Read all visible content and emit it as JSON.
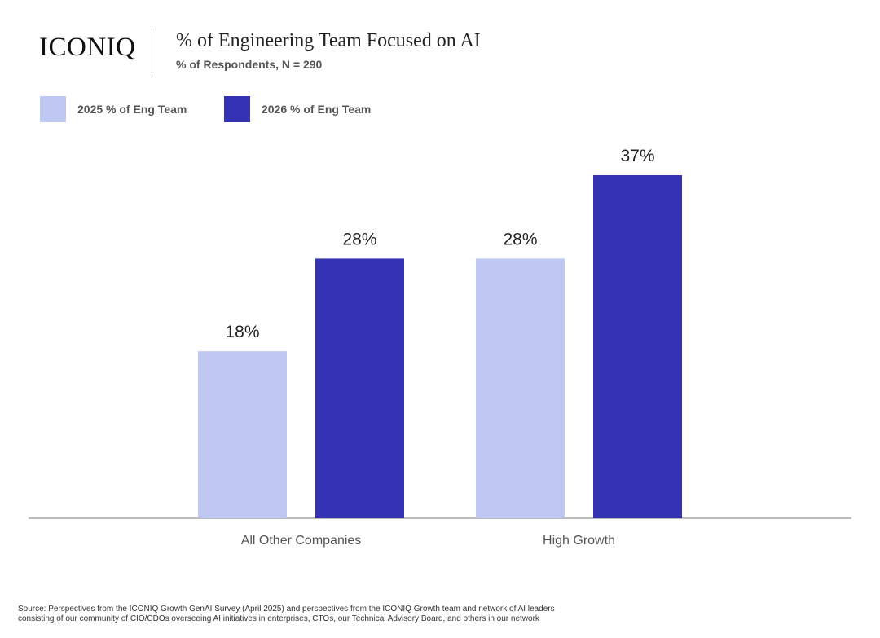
{
  "logo": "ICONIQ",
  "title": "% of Engineering Team Focused on AI",
  "subtitle": "% of Respondents, N = 290",
  "legend": [
    {
      "label": "2025 % of Eng Team",
      "color": "#bec8f2"
    },
    {
      "label": "2026 % of Eng Team",
      "color": "#3532b3"
    }
  ],
  "chart_data": {
    "type": "bar",
    "categories": [
      "All Other Companies",
      "High Growth"
    ],
    "series": [
      {
        "name": "2025 % of Eng Team",
        "values": [
          18,
          28
        ],
        "color": "#bec8f2"
      },
      {
        "name": "2026 % of Eng Team",
        "values": [
          28,
          37
        ],
        "color": "#3532b3"
      }
    ],
    "data_labels": [
      [
        "18%",
        "28%"
      ],
      [
        "28%",
        "37%"
      ]
    ],
    "ylim": [
      0,
      40
    ],
    "grid": false,
    "legend_position": "top-left"
  },
  "footer": {
    "line1": "Source: Perspectives from the ICONIQ Growth GenAI Survey (April 2025) and perspectives from the ICONIQ Growth team and network of AI leaders",
    "line2": "consisting of our community of CIO/CDOs overseeing AI initiatives in enterprises, CTOs, our Technical Advisory Board, and others in our network"
  }
}
